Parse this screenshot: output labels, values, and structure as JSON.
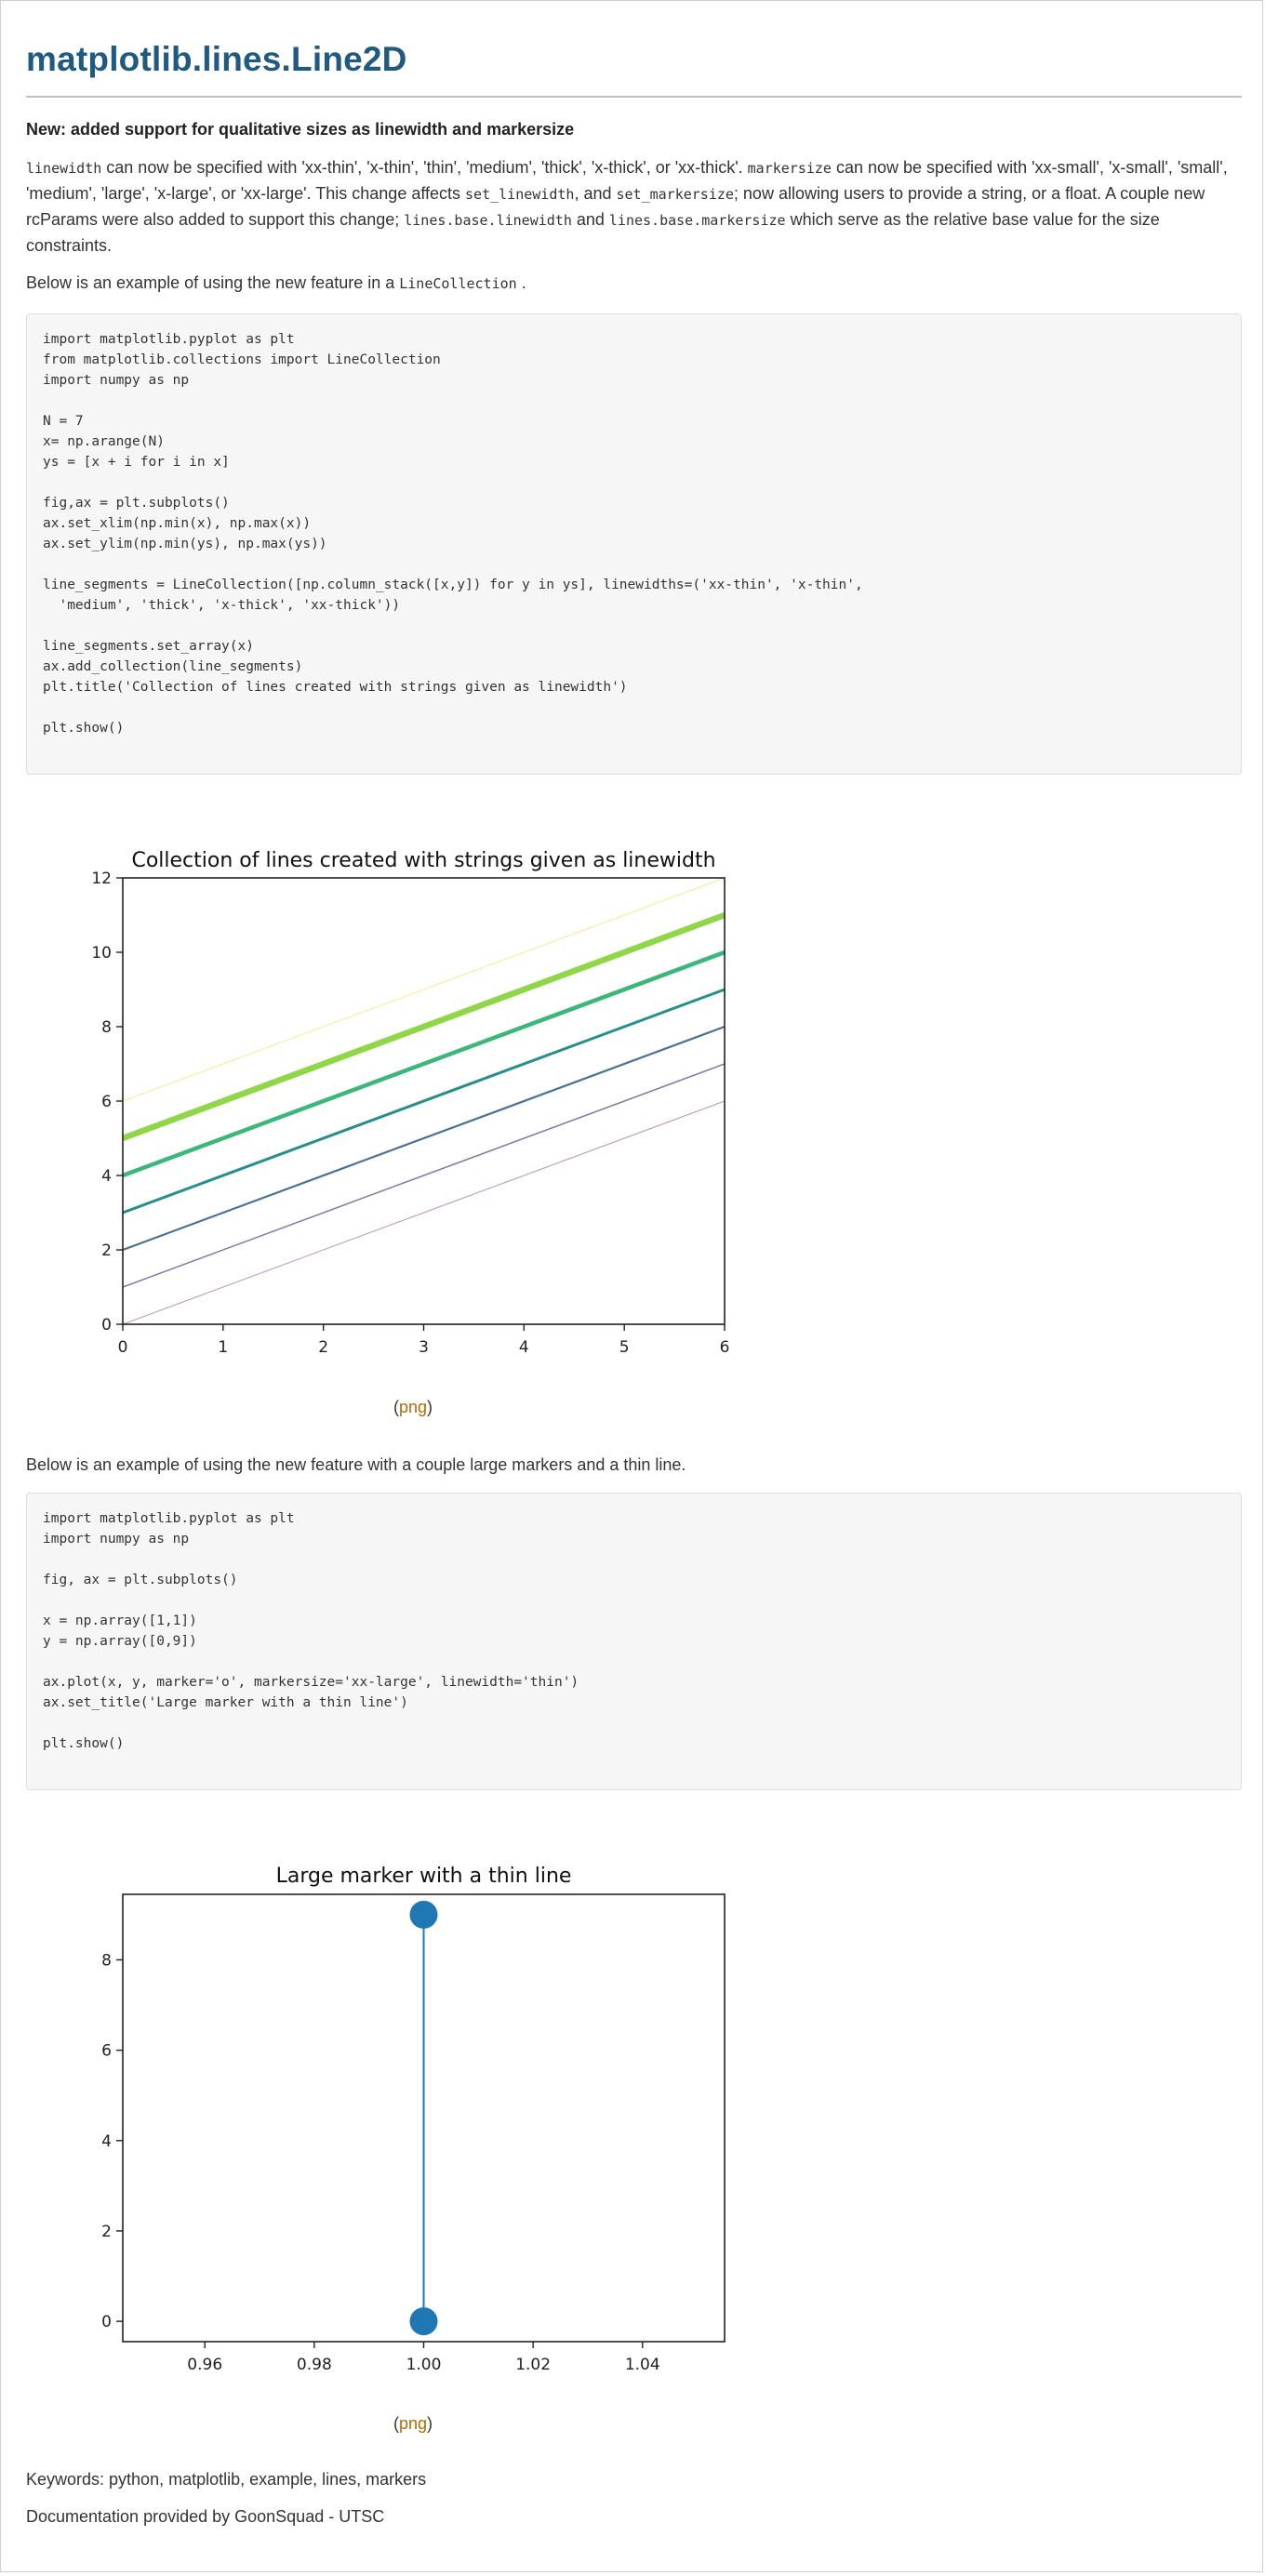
{
  "page": {
    "title": "matplotlib.lines.Line2D",
    "subheading": "New: added support for qualitative sizes as linewidth and markersize",
    "intro": [
      {
        "t": "code",
        "v": "linewidth"
      },
      {
        "t": "text",
        "v": " can now be specified with 'xx-thin', 'x-thin', 'thin', 'medium', 'thick', 'x-thick', or 'xx-thick'. "
      },
      {
        "t": "code",
        "v": "markersize"
      },
      {
        "t": "text",
        "v": " can now be specified with 'xx-small', 'x-small', 'small', 'medium', 'large', 'x-large', or 'xx-large'. This change affects "
      },
      {
        "t": "code",
        "v": "set_linewidth"
      },
      {
        "t": "text",
        "v": ", and "
      },
      {
        "t": "code",
        "v": "set_markersize"
      },
      {
        "t": "text",
        "v": "; now allowing users to provide a string, or a float. A couple new rcParams were also added to support this change; "
      },
      {
        "t": "code",
        "v": "lines.base.linewidth"
      },
      {
        "t": "text",
        "v": " and "
      },
      {
        "t": "code",
        "v": "lines.base.markersize"
      },
      {
        "t": "text",
        "v": " which serve as the relative base value for the size constraints."
      }
    ],
    "example1_prefix": "Below is an example of using the new feature in a ",
    "example1_code": "LineCollection",
    "example1_suffix": " .",
    "code1": "import matplotlib.pyplot as plt\nfrom matplotlib.collections import LineCollection\nimport numpy as np\n\nN = 7\nx= np.arange(N)\nys = [x + i for i in x]\n\nfig,ax = plt.subplots()\nax.set_xlim(np.min(x), np.max(x))\nax.set_ylim(np.min(ys), np.max(ys))\n\nline_segments = LineCollection([np.column_stack([x,y]) for y in ys], linewidths=('xx-thin', 'x-thin',\n  'medium', 'thick', 'x-thick', 'xx-thick'))\n\nline_segments.set_array(x)\nax.add_collection(line_segments)\nplt.title('Collection of lines created with strings given as linewidth')\n\nplt.show()",
    "png_link_text": "png",
    "png_open": "(",
    "png_close": ")",
    "example2_text": "Below is an example of using the new feature with a couple large markers and a thin line.",
    "code2": "import matplotlib.pyplot as plt\nimport numpy as np\n\nfig, ax = plt.subplots()\n\nx = np.array([1,1])\ny = np.array([0,9])\n\nax.plot(x, y, marker='o', markersize='xx-large', linewidth='thin')\nax.set_title('Large marker with a thin line')\n\nplt.show()",
    "keywords": "Keywords: python, matplotlib, example, lines, markers",
    "credit": "Documentation provided by GoonSquad - UTSC"
  },
  "chart_data": [
    {
      "type": "line",
      "title": "Collection of lines created with strings given as linewidth",
      "xlabel": "",
      "ylabel": "",
      "xlim": [
        0,
        6
      ],
      "ylim": [
        0,
        12
      ],
      "xticks": [
        0,
        1,
        2,
        3,
        4,
        5,
        6
      ],
      "yticks": [
        0,
        2,
        4,
        6,
        8,
        10,
        12
      ],
      "grid": false,
      "series": [
        {
          "x": [
            0,
            6
          ],
          "y": [
            0,
            6
          ],
          "color": "#b68fc2",
          "linewidth": 1
        },
        {
          "x": [
            0,
            6
          ],
          "y": [
            1,
            7
          ],
          "color": "#7f76a8",
          "linewidth": 1.5
        },
        {
          "x": [
            0,
            6
          ],
          "y": [
            2,
            8
          ],
          "color": "#467296",
          "linewidth": 2.2
        },
        {
          "x": [
            0,
            6
          ],
          "y": [
            3,
            9
          ],
          "color": "#268f8a",
          "linewidth": 3
        },
        {
          "x": [
            0,
            6
          ],
          "y": [
            4,
            10
          ],
          "color": "#3bb77a",
          "linewidth": 4.5
        },
        {
          "x": [
            0,
            6
          ],
          "y": [
            5,
            11
          ],
          "color": "#8fd648",
          "linewidth": 6.5
        },
        {
          "x": [
            0,
            6
          ],
          "y": [
            6,
            12
          ],
          "color": "#fbe98a",
          "linewidth": 1
        }
      ]
    },
    {
      "type": "line",
      "title": "Large marker with a thin line",
      "xlabel": "",
      "ylabel": "",
      "xlim": [
        0.945,
        1.055
      ],
      "ylim": [
        -0.45,
        9.45
      ],
      "xticks": [
        0.96,
        0.98,
        1.0,
        1.02,
        1.04
      ],
      "xticklabels": [
        "0.96",
        "0.98",
        "1.00",
        "1.02",
        "1.04"
      ],
      "yticks": [
        0,
        2,
        4,
        6,
        8
      ],
      "grid": false,
      "series": [
        {
          "x": [
            1,
            1
          ],
          "y": [
            0,
            9
          ],
          "color": "#1f77b4",
          "linewidth": 2,
          "marker": "o"
        }
      ]
    }
  ]
}
